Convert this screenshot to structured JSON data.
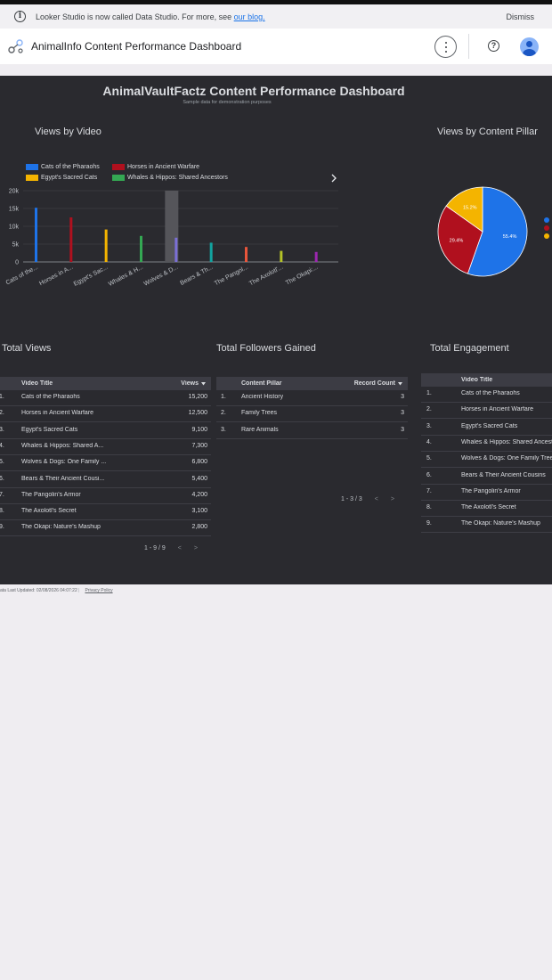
{
  "banner": {
    "message": "Looker Studio is now called Data Studio. For more, see",
    "link": "our blog.",
    "dismiss": "Dismiss"
  },
  "appbar": {
    "title": "AnimalInfo Content Performance Dashboard"
  },
  "report": {
    "title": "AnimalVaultFactz Content Performance Dashboard",
    "subtitle": "Sample data for demonstration purposes",
    "views_by_video_title": "Views by Video",
    "views_by_pillar_title": "Views by Content Pillar",
    "total_views_title": "Total Views",
    "total_followers_title": "Total Followers Gained",
    "total_engagement_title": "Total Engagement"
  },
  "chart_data": [
    {
      "type": "bar",
      "legend": [
        {
          "name": "Cats of the Pharaohs",
          "color": "#1e73e8"
        },
        {
          "name": "Horses in Ancient Warfare",
          "color": "#b0101e"
        },
        {
          "name": "Egypt's Sacred Cats",
          "color": "#f4b400"
        },
        {
          "name": "Whales & Hippos: Shared Ancestors",
          "color": "#34a853"
        }
      ],
      "categories": [
        "Cats of the...",
        "Horses in A...",
        "Egypt's Sac...",
        "Whales & H...",
        "Wolves & D...",
        "Bears & Th...",
        "The Pangol...",
        "The Axolotl'...",
        "The Okapi:..."
      ],
      "values": [
        15200,
        12500,
        9100,
        7300,
        6800,
        5400,
        4200,
        3100,
        2800
      ],
      "colors": [
        "#1e73e8",
        "#b0101e",
        "#f4b400",
        "#34a853",
        "#7b6fd6",
        "#12a4a0",
        "#e8553b",
        "#b5c327",
        "#9c27b0"
      ],
      "highlight_index": 4,
      "yticks": [
        "0",
        "5k",
        "10k",
        "15k",
        "20k"
      ],
      "ylim": [
        0,
        20000
      ]
    },
    {
      "type": "pie",
      "slices": [
        {
          "value": 55.4,
          "label": "55.4%",
          "color": "#1e73e8"
        },
        {
          "value": 29.4,
          "label": "29.4%",
          "color": "#b0101e"
        },
        {
          "value": 15.2,
          "label": "15.2%",
          "color": "#f4b400"
        }
      ]
    }
  ],
  "tables": {
    "views": {
      "headers": [
        "Video Title",
        "Views"
      ],
      "sort_icon": "arrow-down-icon",
      "rows": [
        {
          "num": "1.",
          "title": "Cats of the Pharaohs",
          "value": "15,200"
        },
        {
          "num": "2.",
          "title": "Horses in Ancient Warfare",
          "value": "12,500"
        },
        {
          "num": "3.",
          "title": "Egypt's Sacred Cats",
          "value": "9,100"
        },
        {
          "num": "4.",
          "title": "Whales & Hippos: Shared A...",
          "value": "7,300"
        },
        {
          "num": "5.",
          "title": "Wolves & Dogs: One Family ...",
          "value": "6,800"
        },
        {
          "num": "6.",
          "title": "Bears & Their Ancient Cousi...",
          "value": "5,400"
        },
        {
          "num": "7.",
          "title": "The Pangolin's Armor",
          "value": "4,200"
        },
        {
          "num": "8.",
          "title": "The Axolotl's Secret",
          "value": "3,100"
        },
        {
          "num": "9.",
          "title": "The Okapi: Nature's Mashup",
          "value": "2,800"
        }
      ],
      "pager": "1 - 9 / 9"
    },
    "followers": {
      "headers": [
        "Content Pillar",
        "Record Count"
      ],
      "rows": [
        {
          "num": "1.",
          "title": "Ancient History",
          "value": "3"
        },
        {
          "num": "2.",
          "title": "Family Trees",
          "value": "3"
        },
        {
          "num": "3.",
          "title": "Rare Animals",
          "value": "3"
        }
      ],
      "pager": "1 - 3 / 3"
    },
    "engagement": {
      "headers": [
        "Video Title"
      ],
      "rows": [
        {
          "num": "1.",
          "title": "Cats of the Pharaohs"
        },
        {
          "num": "2.",
          "title": "Horses in Ancient Warfare"
        },
        {
          "num": "3.",
          "title": "Egypt's Sacred Cats"
        },
        {
          "num": "4.",
          "title": "Whales & Hippos: Shared Ancestors"
        },
        {
          "num": "5.",
          "title": "Wolves & Dogs: One Family Tree"
        },
        {
          "num": "6.",
          "title": "Bears & Their Ancient Cousins"
        },
        {
          "num": "7.",
          "title": "The Pangolin's Armor"
        },
        {
          "num": "8.",
          "title": "The Axolotl's Secret"
        },
        {
          "num": "9.",
          "title": "The Okapi: Nature's Mashup"
        }
      ]
    }
  },
  "footer": {
    "updated": "ata Last Updated: 02/08/2026 04:07:22",
    "privacy": "Privacy Policy"
  }
}
